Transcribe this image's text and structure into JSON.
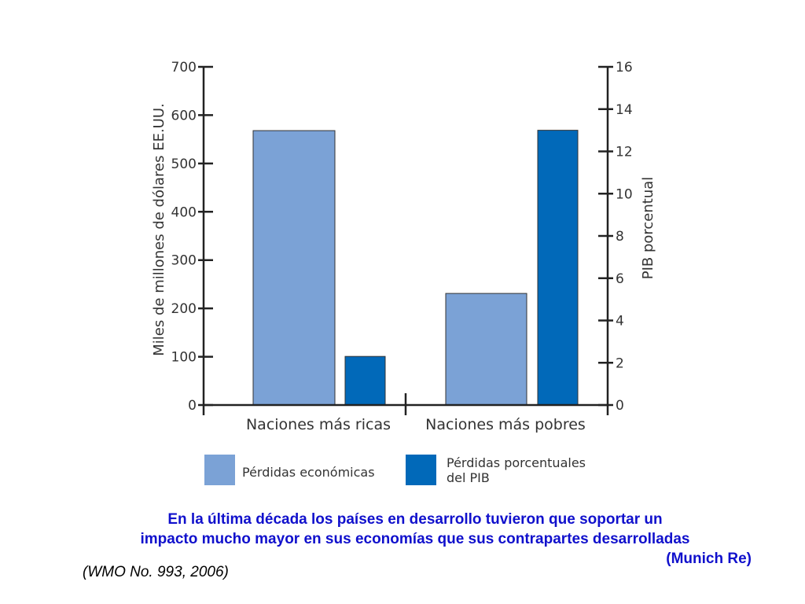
{
  "chart_data": {
    "type": "bar",
    "categories": [
      "Naciones más ricas",
      "Naciones más pobres"
    ],
    "series": [
      {
        "name": "Pérdidas económicas",
        "axis": "left",
        "values": [
          568,
          231
        ],
        "color": "#7ba2d6"
      },
      {
        "name": "Pérdidas porcentuales del PIB",
        "legend_lines": [
          "Pérdidas porcentuales",
          "del PIB"
        ],
        "axis": "right",
        "values": [
          2.3,
          13
        ],
        "color": "#0169b9"
      }
    ],
    "y_left": {
      "label": "Miles de millones de dólares EE.UU.",
      "ylim": [
        0,
        700
      ],
      "ticks": [
        0,
        100,
        200,
        300,
        400,
        500,
        600,
        700
      ]
    },
    "y_right": {
      "label": "PIB porcentual",
      "ylim": [
        0,
        16
      ],
      "ticks": [
        0,
        2,
        4,
        6,
        8,
        10,
        12,
        14,
        16
      ]
    },
    "grid": false,
    "legend": "bottom"
  },
  "caption": {
    "lines": [
      "En la última década los países en desarrollo tuvieron que soportar un",
      "impacto mucho mayor en sus economías que sus contrapartes desarrolladas"
    ],
    "source": "(Munich Re)",
    "color": "#1010cc"
  },
  "citation": "(WMO No. 993, 2006)"
}
